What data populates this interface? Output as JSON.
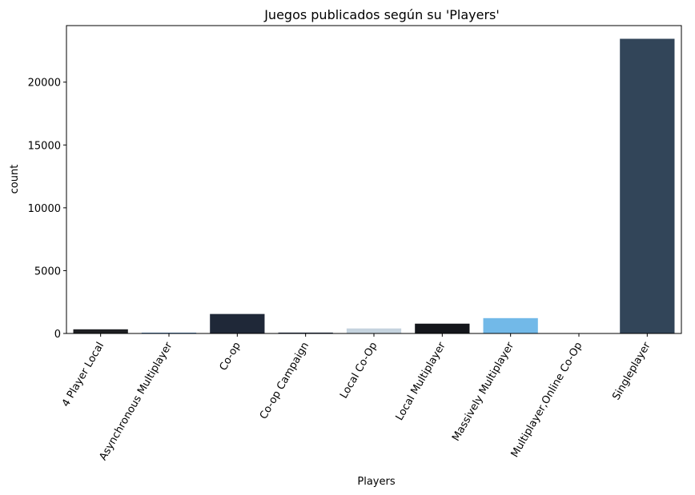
{
  "chart_data": {
    "type": "bar",
    "title": "Juegos publicados según su 'Players'",
    "xlabel": "Players",
    "ylabel": "count",
    "categories": [
      "4 Player Local",
      "Asynchronous Multiplayer",
      "Co-op",
      "Co-op Campaign",
      "Local Co-Op",
      "Local Multiplayer",
      "Massively Multiplayer",
      "Multiplayer,Online Co-Op",
      "Singleplayer"
    ],
    "values": [
      330,
      60,
      1550,
      70,
      400,
      780,
      1220,
      5,
      23450
    ],
    "colors": [
      "#1e1f22",
      "#3a78b8",
      "#1f2838",
      "#1b2a44",
      "#c5d3de",
      "#14161b",
      "#72b9e8",
      "#f0f0f0",
      "#324559"
    ],
    "ylim": [
      0,
      24500
    ],
    "yticks": [
      0,
      5000,
      10000,
      15000,
      20000
    ],
    "x_tick_rotation": 60,
    "grid": false,
    "legend": "none"
  }
}
